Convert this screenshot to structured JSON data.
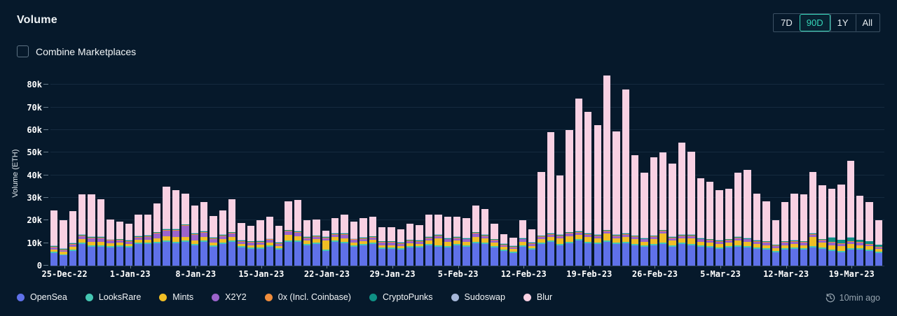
{
  "header": {
    "title": "Volume",
    "ranges": [
      {
        "label": "7D",
        "selected": false
      },
      {
        "label": "90D",
        "selected": true
      },
      {
        "label": "1Y",
        "selected": false
      },
      {
        "label": "All",
        "selected": false
      }
    ]
  },
  "controls": {
    "combine_label": "Combine Marketplaces",
    "checkbox_checked": false
  },
  "footer": {
    "updated": "10min ago"
  },
  "colors": {
    "background": "#06192b",
    "accent_teal": "#35d6b9",
    "grid": "rgba(125,165,200,0.13)",
    "muted_text": "#95a3ae"
  },
  "chart_data": {
    "type": "bar",
    "stacked": true,
    "title": "Volume",
    "ylabel": "Volume (ETH)",
    "unit": "thousand ETH",
    "n_bars": 89,
    "ylim": [
      0,
      85
    ],
    "grid": true,
    "legend_position": "bottom",
    "y_ticks": [
      {
        "label": "0",
        "value": 0
      },
      {
        "label": "10k",
        "value": 10
      },
      {
        "label": "20k",
        "value": 20
      },
      {
        "label": "30k",
        "value": 30
      },
      {
        "label": "40k",
        "value": 40
      },
      {
        "label": "50k",
        "value": 50
      },
      {
        "label": "60k",
        "value": 60
      },
      {
        "label": "70k",
        "value": 70
      },
      {
        "label": "80k",
        "value": 80
      }
    ],
    "x_tick_labels": [
      {
        "label": "25-Dec-22",
        "index": 1
      },
      {
        "label": "1-Jan-23",
        "index": 8
      },
      {
        "label": "8-Jan-23",
        "index": 15
      },
      {
        "label": "15-Jan-23",
        "index": 22
      },
      {
        "label": "22-Jan-23",
        "index": 29
      },
      {
        "label": "29-Jan-23",
        "index": 36
      },
      {
        "label": "5-Feb-23",
        "index": 43
      },
      {
        "label": "12-Feb-23",
        "index": 50
      },
      {
        "label": "19-Feb-23",
        "index": 57
      },
      {
        "label": "26-Feb-23",
        "index": 64
      },
      {
        "label": "5-Mar-23",
        "index": 71
      },
      {
        "label": "12-Mar-23",
        "index": 78
      },
      {
        "label": "19-Mar-23",
        "index": 85
      }
    ],
    "series": [
      {
        "name": "OpenSea",
        "color": "#5f71e9",
        "values": [
          5.5,
          4.5,
          6.5,
          9.5,
          8.5,
          8.5,
          8,
          8.5,
          8,
          9.5,
          9.5,
          10,
          10.5,
          10,
          10.5,
          9,
          10.5,
          8.5,
          9.5,
          10.5,
          8,
          7.5,
          7.5,
          8.5,
          7,
          10.5,
          10.5,
          9,
          9.5,
          6.5,
          10.5,
          10,
          8.5,
          9,
          9.5,
          7.5,
          7.5,
          7,
          8,
          8,
          9,
          8.5,
          8,
          9,
          8.5,
          10,
          9.5,
          8,
          6.5,
          5.5,
          8.5,
          7,
          9.5,
          10.5,
          9,
          10,
          11,
          10,
          9.5,
          10.5,
          9.5,
          10,
          9,
          8.5,
          9,
          9.5,
          8.5,
          9.5,
          9,
          8.5,
          8,
          7.5,
          8,
          8.5,
          8,
          7.5,
          7,
          6,
          7,
          7.5,
          7,
          8,
          7.5,
          6.5,
          6,
          7,
          7,
          6.5,
          5.5
        ]
      },
      {
        "name": "LooksRare",
        "color": "#45c7b3",
        "const": 0.6
      },
      {
        "name": "Mints",
        "color": "#f0be25",
        "values": [
          1,
          1,
          1.2,
          1.5,
          1.5,
          1.5,
          1.2,
          1,
          1,
          1.2,
          1.2,
          1.5,
          2,
          2,
          1.5,
          1.5,
          1.5,
          1.2,
          1.5,
          1.5,
          1,
          1,
          1.2,
          1.2,
          1,
          2.5,
          2,
          1.5,
          1.5,
          4,
          1.5,
          1.5,
          1.2,
          1.2,
          1.2,
          1,
          1,
          1,
          1.2,
          1,
          1.5,
          3,
          2,
          1.5,
          1.5,
          2,
          2,
          1.5,
          1.2,
          1.2,
          1.5,
          1.2,
          1.5,
          1.5,
          2.5,
          2.5,
          2,
          2,
          2,
          3,
          2,
          2,
          2,
          1.5,
          2,
          4,
          2,
          2,
          2.5,
          1.5,
          1.5,
          1.5,
          1.5,
          2,
          2,
          1.5,
          1.5,
          1.2,
          1.5,
          1.5,
          1.5,
          4,
          2,
          2,
          2,
          2,
          1.5,
          1.5,
          1.2
        ]
      },
      {
        "name": "X2Y2",
        "color": "#9c64cb",
        "values": [
          1,
          0.8,
          1,
          1.5,
          1.5,
          1.5,
          1.2,
          1,
          1,
          1.2,
          1.5,
          2,
          2.5,
          3,
          5,
          2.5,
          2,
          1.5,
          1.5,
          1.5,
          1,
          1,
          1,
          1,
          1,
          1.5,
          1.5,
          1,
          1,
          1,
          1,
          1.5,
          1,
          1,
          1,
          1,
          1,
          1,
          1,
          1,
          1,
          1,
          1,
          1,
          1,
          1.5,
          1,
          1,
          0.8,
          0.8,
          1,
          0.8,
          1,
          1,
          1,
          1,
          1,
          1,
          1,
          1,
          1,
          1,
          1,
          1,
          1,
          1,
          1,
          1,
          1,
          1,
          1,
          1,
          1,
          1,
          1,
          1,
          1,
          0.8,
          1,
          1,
          1,
          1,
          1,
          1,
          1,
          1,
          1,
          0.8,
          0.8
        ]
      },
      {
        "name": "0x (Incl. Coinbase)",
        "color": "#f08d3c",
        "const": 0.3
      },
      {
        "name": "CryptoPunks",
        "color": "#0f9185",
        "const": 0.3,
        "overrides": {
          "83": 2,
          "84": 1.5,
          "85": 1.5,
          "86": 1,
          "87": 1,
          "88": 0.8
        }
      },
      {
        "name": "Sudoswap",
        "color": "#a5b7d9",
        "const": 0.2
      },
      {
        "name": "Blur",
        "color": "#f9d1e3",
        "values": [
          15.6,
          12.3,
          13.9,
          17.6,
          18.6,
          16.6,
          8.7,
          7.6,
          7.1,
          9.2,
          8.9,
          12.6,
          18.6,
          17.1,
          13.6,
          12.1,
          12.6,
          9.4,
          10.6,
          14.6,
          7.6,
          6.6,
          8.9,
          9.4,
          7.1,
          12.6,
          13.6,
          7.1,
          7.1,
          2.6,
          6.6,
          8.1,
          7.4,
          8.4,
          8.4,
          6.1,
          6.1,
          5.6,
          6.9,
          6.6,
          9.6,
          8.6,
          9.1,
          8.6,
          8.6,
          11.6,
          11.1,
          6.6,
          4.1,
          3.6,
          7.6,
          5.6,
          28.1,
          44.6,
          26.1,
          45.1,
          58.6,
          53.6,
          48.1,
          68.1,
          45.6,
          63.6,
          35.6,
          28.6,
          34.6,
          34.1,
          32.1,
          40.6,
          36.6,
          26.1,
          25.1,
          22.1,
          22.1,
          28.1,
          30.1,
          20.6,
          17.6,
          10.6,
          17.1,
          20.6,
          20.6,
          27.1,
          23.6,
          21.4,
          24.4,
          33.9,
          19.4,
          17.1,
          10.6
        ]
      }
    ]
  }
}
